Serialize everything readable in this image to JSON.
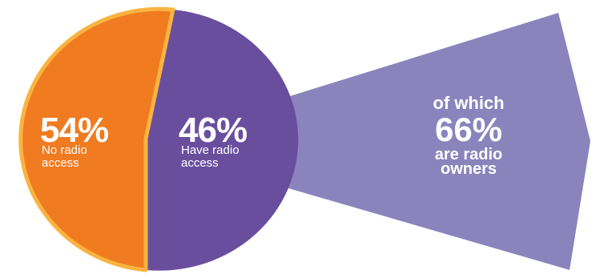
{
  "colors": {
    "no_access": "#F07B20",
    "no_access_border": "#F9B441",
    "have_access": "#6A4E9E",
    "owners_wedge": "#8B84BC",
    "text": "#FFFFFF"
  },
  "chart_data": [
    {
      "type": "pie",
      "slices": [
        {
          "label": "No radio access",
          "value": 54,
          "display": "54%",
          "color": "#F07B20"
        },
        {
          "label": "Have radio access",
          "value": 46,
          "display": "46%",
          "color": "#6A4E9E"
        }
      ]
    },
    {
      "type": "pie",
      "note_prefix": "of which",
      "slices": [
        {
          "label": "are radio owners",
          "value": 66,
          "display": "66%",
          "color": "#8B84BC"
        }
      ]
    }
  ],
  "labels": {
    "no_access_pct": "54%",
    "no_access_line1": "No radio",
    "no_access_line2": "access",
    "have_access_pct": "46%",
    "have_access_line1": "Have radio",
    "have_access_line2": "access",
    "of_which": "of which",
    "owners_pct": "66%",
    "owners_line1": "are radio",
    "owners_line2": "owners"
  }
}
